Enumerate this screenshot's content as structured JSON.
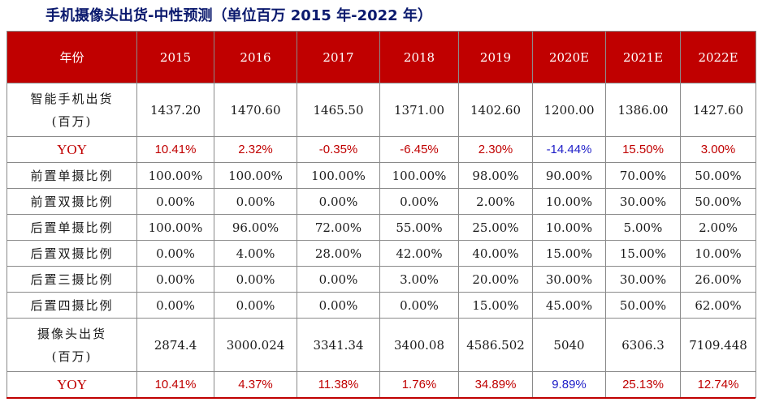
{
  "title": "手机摄像头出货-中性预测（单位百万 2015 年-2022 年）",
  "header": {
    "label": "年份",
    "years": [
      "2015",
      "2016",
      "2017",
      "2018",
      "2019",
      "2020E",
      "2021E",
      "2022E"
    ]
  },
  "colors": {
    "header_bg": "#c00000",
    "positive": "#c00000",
    "forecast_2020": "#1f1fc8",
    "title": "#0b1a6e"
  },
  "rows": {
    "smartphone": {
      "label_l1": "智能手机出货",
      "label_l2": "(百万)",
      "values": [
        "1437.20",
        "1470.60",
        "1465.50",
        "1371.00",
        "1402.60",
        "1200.00",
        "1386.00",
        "1427.60"
      ]
    },
    "yoy1": {
      "label": "YOY",
      "values": [
        "10.41%",
        "2.32%",
        "-0.35%",
        "-6.45%",
        "2.30%",
        "-14.44%",
        "15.50%",
        "3.00%"
      ]
    },
    "front_single": {
      "label": "前置单摄比例",
      "values": [
        "100.00%",
        "100.00%",
        "100.00%",
        "100.00%",
        "98.00%",
        "90.00%",
        "70.00%",
        "50.00%"
      ]
    },
    "front_dual": {
      "label": "前置双摄比例",
      "values": [
        "0.00%",
        "0.00%",
        "0.00%",
        "0.00%",
        "2.00%",
        "10.00%",
        "30.00%",
        "50.00%"
      ]
    },
    "rear_single": {
      "label": "后置单摄比例",
      "values": [
        "100.00%",
        "96.00%",
        "72.00%",
        "55.00%",
        "25.00%",
        "10.00%",
        "5.00%",
        "2.00%"
      ]
    },
    "rear_dual": {
      "label": "后置双摄比例",
      "values": [
        "0.00%",
        "4.00%",
        "28.00%",
        "42.00%",
        "40.00%",
        "15.00%",
        "15.00%",
        "10.00%"
      ]
    },
    "rear_triple": {
      "label": "后置三摄比例",
      "values": [
        "0.00%",
        "0.00%",
        "0.00%",
        "3.00%",
        "20.00%",
        "30.00%",
        "30.00%",
        "26.00%"
      ]
    },
    "rear_quad": {
      "label": "后置四摄比例",
      "values": [
        "0.00%",
        "0.00%",
        "0.00%",
        "0.00%",
        "15.00%",
        "45.00%",
        "50.00%",
        "62.00%"
      ]
    },
    "camera": {
      "label_l1": "摄像头出货",
      "label_l2": "(百万)",
      "values": [
        "2874.4",
        "3000.024",
        "3341.34",
        "3400.08",
        "4586.502",
        "5040",
        "6306.3",
        "7109.448"
      ]
    },
    "yoy2": {
      "label": "YOY",
      "values": [
        "10.41%",
        "4.37%",
        "11.38%",
        "1.76%",
        "34.89%",
        "9.89%",
        "25.13%",
        "12.74%"
      ]
    }
  }
}
